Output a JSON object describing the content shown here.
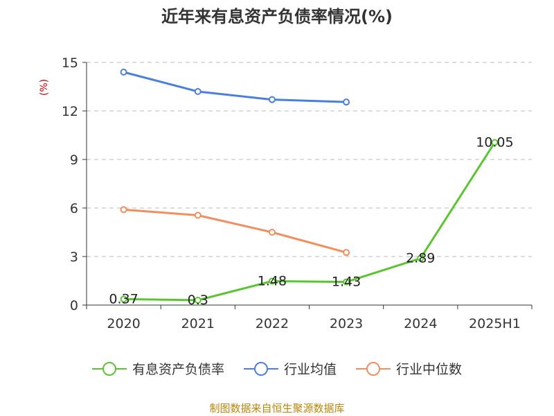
{
  "title": "近年来有息资产负债率情况(%)",
  "source": "制图数据来自恒生聚源数据库",
  "chart_data": {
    "type": "line",
    "title": "近年来有息资产负债率情况(%)",
    "categories": [
      "2020",
      "2021",
      "2022",
      "2023",
      "2024",
      "2025H1"
    ],
    "y_unit": "(%)",
    "ylim": [
      0,
      15
    ],
    "yticks": [
      0,
      3,
      6,
      9,
      12,
      15
    ],
    "grid": true,
    "legend_position": "bottom",
    "series": [
      {
        "name": "有息资产负债率",
        "color": "#5ac531",
        "values": [
          0.37,
          0.3,
          1.48,
          1.43,
          2.89,
          10.05
        ],
        "labels": [
          "0.37",
          "0.3",
          "1.48",
          "1.43",
          "2.89",
          "10.05"
        ]
      },
      {
        "name": "行业均值",
        "color": "#4a7fdc",
        "values": [
          14.4,
          13.2,
          12.7,
          12.55,
          null,
          null
        ]
      },
      {
        "name": "行业中位数",
        "color": "#f28e5e",
        "values": [
          5.9,
          5.55,
          4.5,
          3.25,
          null,
          null
        ]
      }
    ]
  }
}
